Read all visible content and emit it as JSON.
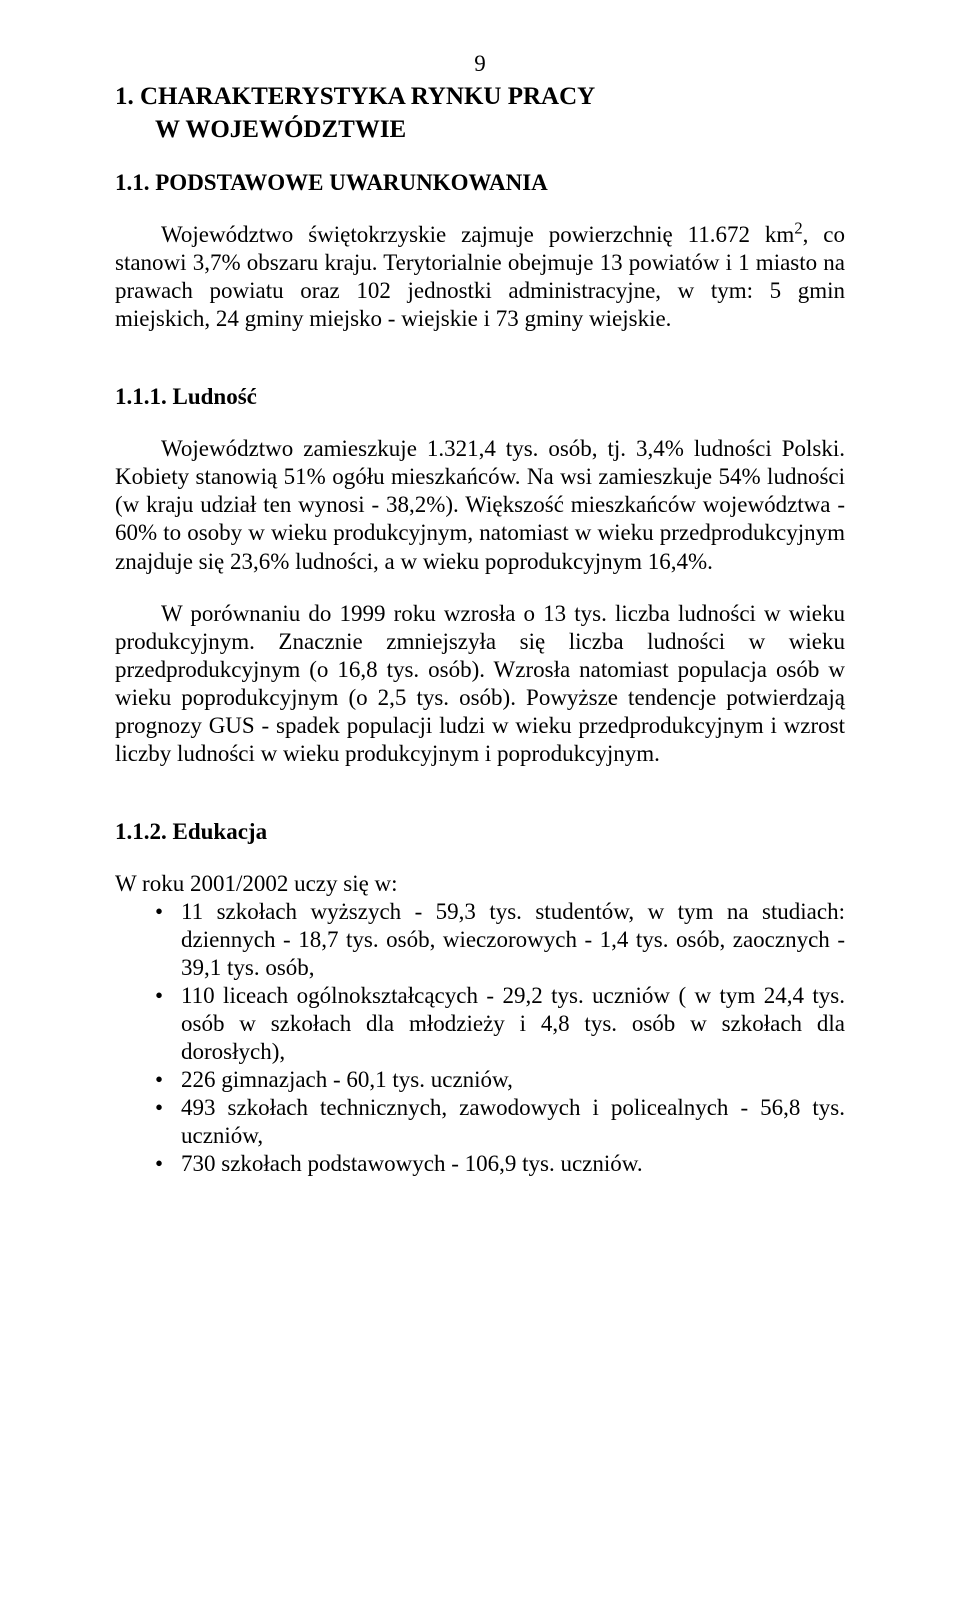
{
  "page_number": "9",
  "h1_line1": "1. CHARAKTERYSTYKA RYNKU PRACY",
  "h1_line2": "W WOJEWÓDZTWIE",
  "h2": "1.1. PODSTAWOWE UWARUNKOWANIA",
  "p1_a": "Województwo świętokrzyskie zajmuje powierzchnię 11.672 km",
  "p1_sup": "2",
  "p1_b": ", co stanowi 3,7% obszaru kraju. Terytorialnie obejmuje 13 powiatów i 1 miasto na prawach powiatu oraz 102 jednostki administracyjne, w tym: 5 gmin miejskich, 24 gminy miejsko - wiejskie i 73 gminy wiejskie.",
  "h3a": "1.1.1. Ludność",
  "p2": "Województwo zamieszkuje 1.321,4 tys. osób, tj. 3,4% ludności Polski. Kobiety stanowią 51% ogółu mieszkańców. Na wsi zamieszkuje 54% ludności (w kraju udział ten wynosi - 38,2%). Większość mieszkańców województwa - 60% to osoby w wieku produkcyjnym, natomiast w wieku przedprodukcyjnym znajduje się 23,6% ludności, a w wieku poprodukcyjnym 16,4%.",
  "p3": "W porównaniu do 1999 roku wzrosła o 13 tys. liczba ludności w wieku produkcyjnym. Znacznie zmniejszyła się liczba ludności w wieku przedprodukcyjnym (o 16,8 tys. osób). Wzrosła natomiast populacja osób w wieku poprodukcyjnym (o 2,5 tys. osób). Powyższe tendencje potwierdzają prognozy GUS - spadek populacji ludzi w wieku przedprodukcyjnym i wzrost liczby ludności  w wieku produkcyjnym i poprodukcyjnym.",
  "h3b": "1.1.2. Edukacja",
  "p4": "W roku 2001/2002 uczy się w:",
  "bullets": [
    "11 szkołach wyższych - 59,3 tys. studentów, w tym na studiach: dziennych - 18,7 tys. osób, wieczorowych - 1,4 tys. osób, zaocznych - 39,1 tys. osób,",
    "110 liceach ogólnokształcących - 29,2 tys. uczniów ( w tym 24,4 tys. osób w szkołach dla młodzieży i 4,8 tys. osób w szkołach dla dorosłych),",
    "226 gimnazjach - 60,1 tys. uczniów,",
    "493 szkołach technicznych, zawodowych i policealnych - 56,8 tys. uczniów,",
    "730 szkołach podstawowych - 106,9 tys. uczniów."
  ]
}
